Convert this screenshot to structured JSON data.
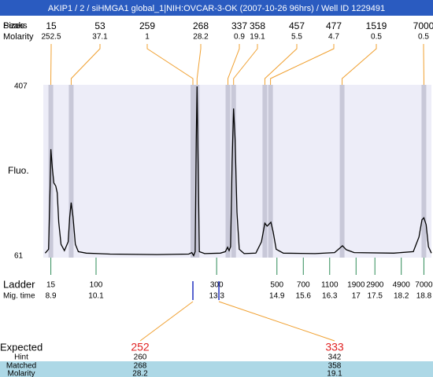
{
  "title": "AKIP1 / 2 / siHMGA1 global_1|NIH:OVCAR-3-OK (2007-10-26 96hrs) / Well ID 1229491",
  "chart_data": {
    "type": "line",
    "y_label": "Fluo.",
    "color": "#000000",
    "ylim": [
      61,
      407
    ],
    "yticks": [
      61,
      407
    ],
    "xlim": [
      8.7,
      19.0
    ],
    "x": [
      8.75,
      8.84,
      8.88,
      8.9,
      8.94,
      8.98,
      9.03,
      9.07,
      9.11,
      9.17,
      9.26,
      9.36,
      9.4,
      9.44,
      9.49,
      9.55,
      9.63,
      9.84,
      10.47,
      11.72,
      12.56,
      12.64,
      12.69,
      12.73,
      12.76,
      12.78,
      12.8,
      12.84,
      12.98,
      13.4,
      13.53,
      13.59,
      13.63,
      13.67,
      13.71,
      13.75,
      13.79,
      13.84,
      13.9,
      14.03,
      14.34,
      14.49,
      14.58,
      14.64,
      14.68,
      14.74,
      14.8,
      14.88,
      15.07,
      15.91,
      16.43,
      16.58,
      16.64,
      16.74,
      16.95,
      18.0,
      18.52,
      18.67,
      18.75,
      18.8,
      18.86,
      18.92,
      19.0
    ],
    "values": [
      67,
      75,
      200,
      279,
      240,
      210,
      204,
      190,
      130,
      85,
      72,
      90,
      140,
      170,
      140,
      85,
      70,
      67,
      65,
      64,
      65,
      68,
      62,
      70,
      300,
      407,
      300,
      70,
      66,
      67,
      70,
      79,
      72,
      80,
      250,
      362,
      300,
      150,
      75,
      66,
      67,
      90,
      128,
      122,
      125,
      130,
      110,
      75,
      67,
      66,
      68,
      78,
      82,
      74,
      68,
      67,
      70,
      100,
      135,
      139,
      125,
      80,
      67
    ],
    "peaks": {
      "peak_label": "Peaks",
      "size_label": "Sizes",
      "molarity_label": "Molarity",
      "sizes": [
        15,
        53,
        259,
        268,
        337,
        358,
        457,
        477,
        1519,
        7000
      ],
      "molarity": [
        252.5,
        37.1,
        1,
        28.2,
        0.9,
        19.1,
        5.5,
        4.7,
        0.5,
        0.5
      ],
      "x": [
        8.9,
        9.44,
        12.67,
        12.78,
        13.6,
        13.75,
        14.58,
        14.73,
        16.63,
        18.8
      ]
    },
    "ladder": {
      "label": "Ladder",
      "time_label": "Mig. time",
      "sizes": [
        15,
        100,
        300,
        500,
        700,
        1100,
        1900,
        2900,
        4900,
        7000
      ],
      "x": [
        8.9,
        10.1,
        13.3,
        14.9,
        15.6,
        16.3,
        17,
        17.5,
        18.2,
        18.8
      ]
    },
    "expected": {
      "label": "Expected",
      "hint_label": "Hint",
      "matched_label": "Matched",
      "molarity_label": "Molarity",
      "values": [
        252,
        333
      ],
      "hint": [
        260,
        342
      ],
      "matched": [
        268,
        358
      ],
      "molarity": [
        28.2,
        19.1
      ],
      "x": [
        12.67,
        13.36
      ]
    }
  }
}
